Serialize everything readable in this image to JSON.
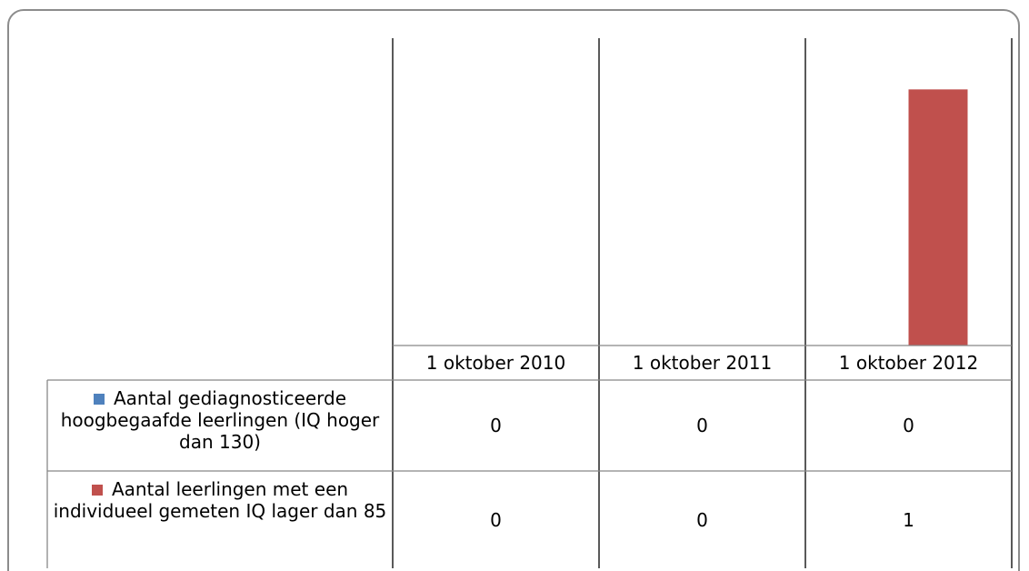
{
  "chart_data": {
    "type": "bar",
    "categories": [
      "1 oktober 2010",
      "1 oktober 2011",
      "1 oktober 2012"
    ],
    "series": [
      {
        "name": "Aantal gediagnosticeerde hoogbegaafde leerlingen (IQ hoger dan 130)",
        "color": "#4f81bd",
        "values": [
          0,
          0,
          0
        ]
      },
      {
        "name": "Aantal leerlingen met een individueel gemeten IQ lager dan 85",
        "color": "#c0504d",
        "values": [
          0,
          0,
          1
        ]
      }
    ],
    "ylim": [
      0,
      1.2
    ],
    "data_table": true
  }
}
